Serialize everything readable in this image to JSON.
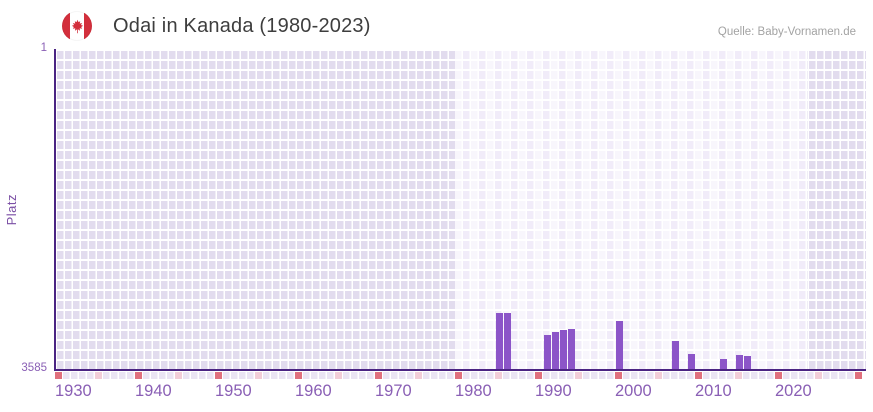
{
  "header": {
    "title": "Odai in Kanada (1980-2023)",
    "source": "Quelle: Baby-Vornamen.de",
    "flag": "canada-flag-icon"
  },
  "colors": {
    "bar": "#8c55c8",
    "axis": "#4b2483",
    "grid_base": "#e2dcee",
    "grid_highlight": "#f1ecf9",
    "tick_red": "#e0707d",
    "tick_pink": "#f2cdd7",
    "tick_strip_bg": "#eae4f3",
    "tick_label": "#8a5fb5",
    "axis_title": "#7b4fa5",
    "title_text": "#3e3e3e",
    "source_text": "#a3a3a3",
    "flag_red": "#d32f3c"
  },
  "chart_data": {
    "type": "bar",
    "title": "Odai in Kanada (1980-2023)",
    "xlabel": "",
    "ylabel": "Platz",
    "y_axis": {
      "inverted": true,
      "min": 1,
      "max": 3585,
      "top_tick_label": "1",
      "bottom_tick_label": "3585"
    },
    "x_axis": {
      "range": [
        1930,
        2030
      ],
      "tick_labels": [
        "1930",
        "1940",
        "1950",
        "1960",
        "1970",
        "1980",
        "1990",
        "2000",
        "2010",
        "2020"
      ],
      "decade_marker_years": [
        1930,
        1940,
        1950,
        1960,
        1970,
        1980,
        1990,
        2000,
        2010,
        2020,
        2030
      ],
      "half_decade_marker_years": [
        1935,
        1945,
        1955,
        1965,
        1975,
        1985,
        1995,
        2005,
        2015,
        2025
      ]
    },
    "highlight_year_range": [
      1980,
      2023
    ],
    "grid": true,
    "legend": false,
    "series": [
      {
        "name": "Odai",
        "points": [
          {
            "year": 1985,
            "rank": 2940
          },
          {
            "year": 1986,
            "rank": 2950
          },
          {
            "year": 1991,
            "rank": 3190
          },
          {
            "year": 1992,
            "rank": 3160
          },
          {
            "year": 1993,
            "rank": 3140
          },
          {
            "year": 1994,
            "rank": 3120
          },
          {
            "year": 2000,
            "rank": 3040
          },
          {
            "year": 2007,
            "rank": 3260
          },
          {
            "year": 2009,
            "rank": 3400
          },
          {
            "year": 2013,
            "rank": 3460
          },
          {
            "year": 2015,
            "rank": 3420
          },
          {
            "year": 2016,
            "rank": 3430
          }
        ]
      }
    ]
  }
}
